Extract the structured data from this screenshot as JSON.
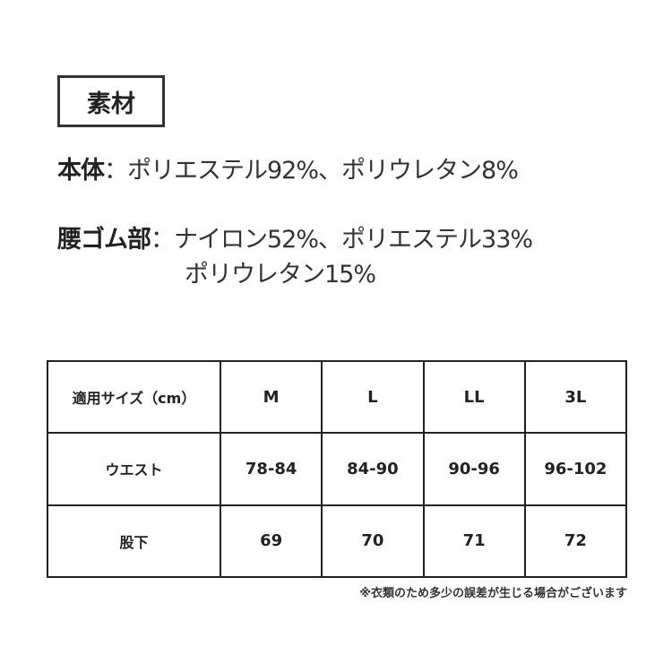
{
  "section_title": "素材",
  "materials": [
    {
      "label": "本体",
      "sep": "：",
      "lines": [
        "ポリエステル92%、ポリウレタン8%"
      ]
    },
    {
      "label": "腰ゴム部",
      "sep": "：",
      "lines": [
        "ナイロン52%、ポリエステル33%",
        "ポリウレタン15%"
      ]
    }
  ],
  "size_table": {
    "header": [
      "適用サイズ（cm）",
      "M",
      "L",
      "LL",
      "3L"
    ],
    "rows": [
      [
        "ウエスト",
        "78-84",
        "84-90",
        "90-96",
        "96-102"
      ],
      [
        "股下",
        "69",
        "70",
        "71",
        "72"
      ]
    ]
  },
  "note": "※衣類のため多少の誤差が生じる場合がございます"
}
